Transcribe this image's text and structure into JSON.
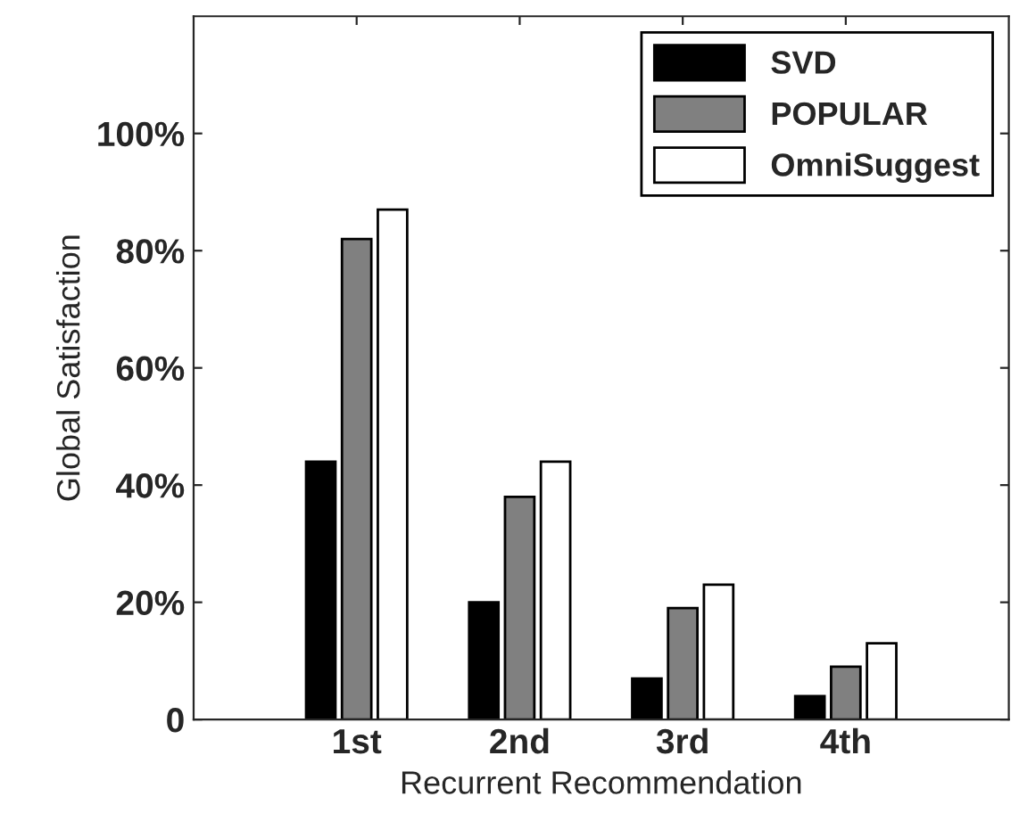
{
  "chart_data": {
    "type": "bar",
    "xlabel": "Recurrent Recommendation",
    "ylabel": "Global Satisfaction",
    "categories": [
      "1st",
      "2nd",
      "3rd",
      "4th"
    ],
    "series": [
      {
        "name": "SVD",
        "color": "#000000",
        "values": [
          44,
          20,
          7,
          4
        ]
      },
      {
        "name": "POPULAR",
        "color": "#808080",
        "values": [
          82,
          38,
          19,
          9
        ]
      },
      {
        "name": "OmniSuggest",
        "color": "#ffffff",
        "values": [
          87,
          44,
          23,
          13
        ]
      }
    ],
    "ylim": [
      0,
      120
    ],
    "yticks": [
      0,
      {
        "value": 20,
        "label": "20%"
      },
      {
        "value": 40,
        "label": "40%"
      },
      {
        "value": 60,
        "label": "60%"
      },
      {
        "value": 80,
        "label": "80%"
      },
      {
        "value": 100,
        "label": "100%"
      }
    ],
    "grid": false,
    "legend": "top right"
  }
}
